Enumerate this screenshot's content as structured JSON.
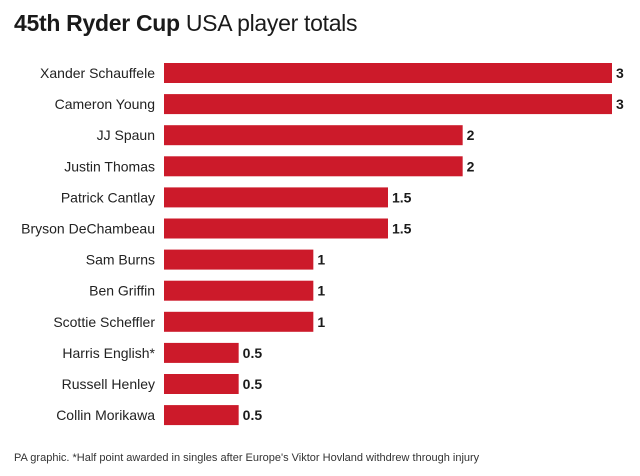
{
  "title": {
    "bold": "45th Ryder Cup",
    "regular": "USA player totals"
  },
  "footnote": "PA graphic. *Half point awarded in singles after Europe's Viktor Hovland withdrew through injury",
  "colors": {
    "bar": "#cc1a2a",
    "label": "#222222",
    "value": "#1a1a1a"
  },
  "chart_data": {
    "type": "bar",
    "orientation": "horizontal",
    "categories": [
      "Xander Schauffele",
      "Cameron Young",
      "JJ Spaun",
      "Justin Thomas",
      "Patrick Cantlay",
      "Bryson DeChambeau",
      "Sam Burns",
      "Ben Griffin",
      "Scottie Scheffler",
      "Harris English*",
      "Russell Henley",
      "Collin Morikawa"
    ],
    "values": [
      3,
      3,
      2,
      2,
      1.5,
      1.5,
      1,
      1,
      1,
      0.5,
      0.5,
      0.5
    ],
    "value_labels": [
      "3",
      "3",
      "2",
      "2",
      "1.5",
      "1.5",
      "1",
      "1",
      "1",
      "0.5",
      "0.5",
      "0.5"
    ],
    "xlim": [
      0,
      3
    ],
    "grid": false,
    "legend": "none"
  }
}
